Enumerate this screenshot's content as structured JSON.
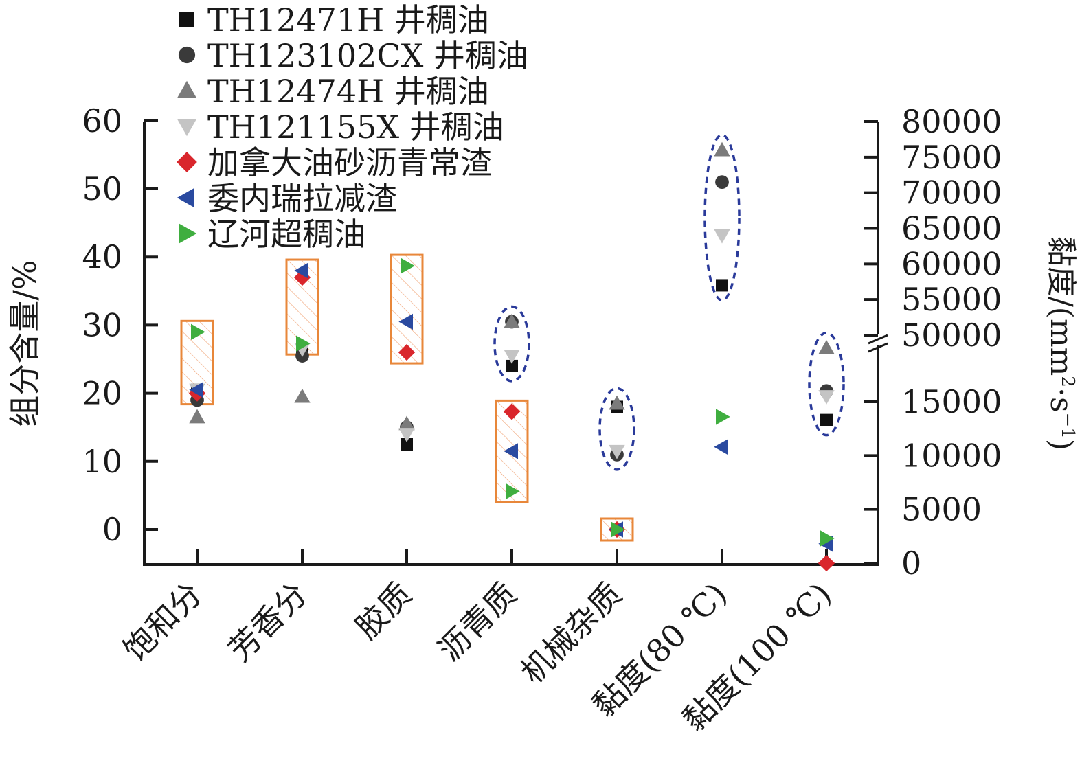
{
  "chart_data": {
    "type": "scatter",
    "categories": [
      "饱和分",
      "芳香分",
      "胶质",
      "沥青质",
      "机械杂质",
      "黏度(80 ℃)",
      "黏度(100 ℃)"
    ],
    "left_axis": {
      "label": "组分含量/%",
      "ticks": [
        "0",
        "10",
        "20",
        "30",
        "40",
        "50",
        "60"
      ],
      "ylim": [
        -5,
        60
      ]
    },
    "right_axis": {
      "label_main": "黏度/(mm",
      "label_sup1": "2",
      "label_mid": "·s",
      "label_sup2": "−1",
      "label_end": ")",
      "ticks": [
        "0",
        "5000",
        "10000",
        "15000",
        "50000",
        "55000",
        "60000",
        "65000",
        "70000",
        "75000",
        "80000"
      ],
      "broken": true,
      "lower_range": [
        0,
        20000
      ],
      "upper_range": [
        50000,
        80000
      ]
    },
    "legend_position": "top-left",
    "series": [
      {
        "name": "TH12471H 井稠油",
        "marker": "square",
        "color": "#111111",
        "values": [
          20.5,
          26.5,
          12.5,
          24,
          18,
          57000,
          13300
        ]
      },
      {
        "name": "TH123102CX 井稠油",
        "marker": "circle",
        "color": "#3a3a3a",
        "values": [
          19,
          25.5,
          15,
          30.5,
          11,
          71500,
          16000
        ]
      },
      {
        "name": "TH12474H 井稠油",
        "marker": "triangle-up",
        "color": "#7b7b7b",
        "values": [
          16.5,
          19.5,
          15.5,
          30.5,
          18.5,
          76000,
          20000
        ]
      },
      {
        "name": "TH121155X 井稠油",
        "marker": "triangle-down",
        "color": "#c4c4c4",
        "values": [
          20.5,
          26.5,
          14,
          25.5,
          11.5,
          64000,
          15500
        ]
      },
      {
        "name": "加拿大油砂沥青常渣",
        "marker": "diamond",
        "color": "#d9262c",
        "values": [
          20,
          37,
          26,
          17.3,
          0,
          null,
          0
        ]
      },
      {
        "name": "委内瑞拉减渣",
        "marker": "triangle-left",
        "color": "#2a4aa0",
        "values": [
          20.5,
          38,
          30.5,
          11.5,
          0,
          10800,
          1800
        ]
      },
      {
        "name": "辽河超稠油",
        "marker": "triangle-right",
        "color": "#3fae3f",
        "values": [
          29,
          27.3,
          38.7,
          5.6,
          0,
          13600,
          2300
        ]
      }
    ],
    "annotations": [
      {
        "shape": "hatched-rectangle",
        "color": "#e8873a",
        "categories": [
          "饱和分",
          "芳香分",
          "胶质",
          "沥青质",
          "机械杂质"
        ]
      },
      {
        "shape": "dashed-ellipse",
        "color": "#2a3a9a",
        "categories": [
          "沥青质",
          "机械杂质",
          "黏度(80 ℃)",
          "黏度(100 ℃)"
        ]
      }
    ]
  }
}
